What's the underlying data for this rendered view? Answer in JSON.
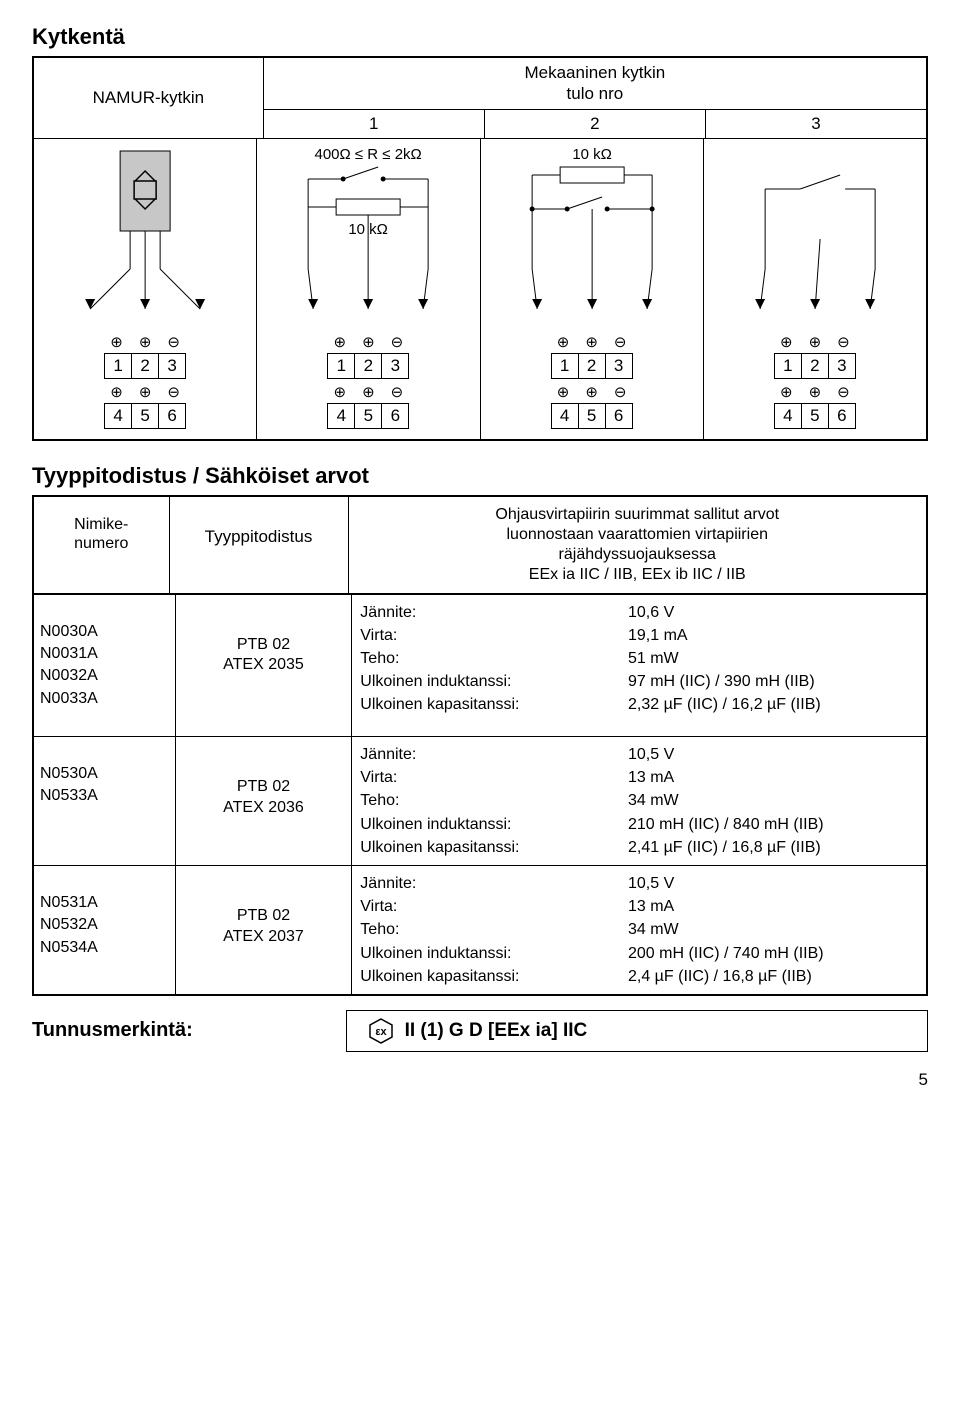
{
  "titles": {
    "kytkenta": "Kytkentä",
    "namur": "NAMUR-kytkin",
    "mech": "Mekaaninen kytkin",
    "tulo": "tulo nro",
    "tyyppi_section": "Tyyppitodistus / Sähköiset arvot",
    "tunnus": "Tunnusmerkintä:"
  },
  "tulo_nums": [
    "1",
    "2",
    "3"
  ],
  "resistor_labels": {
    "r_range": "400Ω ≤ R ≤ 2kΩ",
    "r10k_a": "10 kΩ",
    "r10k_b": "10 kΩ"
  },
  "term_syms": [
    "⊕",
    "⊕",
    "⊖"
  ],
  "term_top": [
    "1",
    "2",
    "3"
  ],
  "term_bot": [
    "4",
    "5",
    "6"
  ],
  "spec_header": {
    "nimike": "Nimike-\nnumero",
    "tyyppitodistus": "Tyyppitodistus",
    "ohj1": "Ohjausvirtapiirin suurimmat sallitut arvot",
    "ohj2": "luonnostaan vaarattomien virtapiirien",
    "ohj3": "räjähdyssuojauksessa",
    "ohj4": "EEx ia IIC / IIB, EEx ib IIC / IIB"
  },
  "prop_labels": {
    "jannite": "Jännite:",
    "virta": "Virta:",
    "teho": "Teho:",
    "ind": "Ulkoinen induktanssi:",
    "kap": "Ulkoinen kapasitanssi:"
  },
  "rows": [
    {
      "codes": [
        "N0030A",
        "N0031A",
        "N0032A",
        "N0033A"
      ],
      "cert": "PTB 02\nATEX 2035",
      "vals": {
        "jannite": "10,6 V",
        "virta": "19,1 mA",
        "teho": "51 mW",
        "ind": "97 mH (IIC) / 390 mH (IIB)",
        "kap": "2,32 µF (IIC) / 16,2 µF (IIB)"
      }
    },
    {
      "codes": [
        "N0530A",
        "N0533A"
      ],
      "cert": "PTB 02\nATEX 2036",
      "vals": {
        "jannite": "10,5 V",
        "virta": "13 mA",
        "teho": "34 mW",
        "ind": "210 mH (IIC) / 840 mH (IIB)",
        "kap": "2,41 µF (IIC) / 16,8 µF (IIB)"
      }
    },
    {
      "codes": [
        "N0531A",
        "N0532A",
        "N0534A"
      ],
      "cert": "PTB 02\nATEX 2037",
      "vals": {
        "jannite": "10,5 V",
        "virta": "13 mA",
        "teho": "34 mW",
        "ind": "200 mH (IIC) / 740 mH (IIB)",
        "kap": "2,4 µF (IIC) / 16,8 µF (IIB)"
      }
    }
  ],
  "marking": "II (1) G D  [EEx ia] IIC",
  "page": "5",
  "style": {
    "border_color": "#000000",
    "text_color": "#000000",
    "bg": "#ffffff",
    "sensor_fill": "#c7c7c7"
  }
}
